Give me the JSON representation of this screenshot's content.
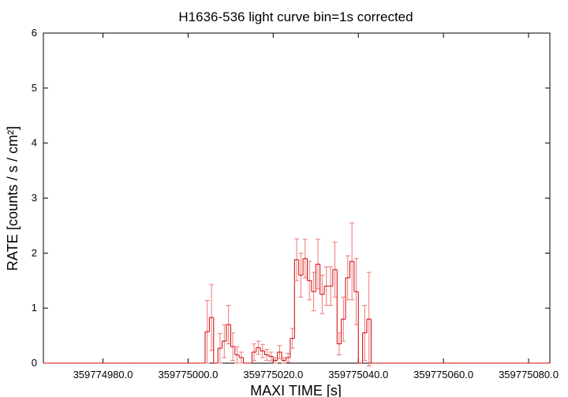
{
  "chart_data": {
    "type": "errorstep",
    "title": "H1636-536 light curve bin=1s corrected",
    "xlabel": "MAXI TIME [s]",
    "ylabel": "RATE [counts / s / cm²]",
    "xlim": [
      359774966,
      359775085
    ],
    "ylim": [
      0,
      6
    ],
    "yticks": [
      0,
      1,
      2,
      3,
      4,
      5,
      6
    ],
    "xticks": [
      {
        "value": 359774980,
        "label": "359774980.0"
      },
      {
        "value": 359775000,
        "label": "359775000.0"
      },
      {
        "value": 359775020,
        "label": "359775020.0"
      },
      {
        "value": 359775040,
        "label": "359775040.0"
      },
      {
        "value": 359775060,
        "label": "359775060.0"
      },
      {
        "value": 359775080,
        "label": "359775080.0"
      }
    ],
    "series": [
      {
        "color": "#d00000",
        "error_color": "#f07878",
        "x": [
          359774966.5,
          359774967.5,
          359774968.5,
          359774969.5,
          359774970.5,
          359774971.5,
          359774972.5,
          359774973.5,
          359774974.5,
          359774975.5,
          359774976.5,
          359774977.5,
          359774978.5,
          359774979.5,
          359774980.5,
          359774981.5,
          359774982.5,
          359774983.5,
          359774984.5,
          359774985.5,
          359774986.5,
          359774987.5,
          359774988.5,
          359774989.5,
          359774990.5,
          359774991.5,
          359774992.5,
          359774993.5,
          359774994.5,
          359774995.5,
          359774996.5,
          359774997.5,
          359774998.5,
          359774999.5,
          359775000.5,
          359775001.5,
          359775002.5,
          359775003.5,
          359775004.5,
          359775005.5,
          359775006.5,
          359775007.5,
          359775008.5,
          359775009.5,
          359775010.5,
          359775011.5,
          359775012.5,
          359775013.5,
          359775014.5,
          359775015.5,
          359775016.5,
          359775017.5,
          359775018.5,
          359775019.5,
          359775020.5,
          359775021.5,
          359775022.5,
          359775023.5,
          359775024.5,
          359775025.5,
          359775026.5,
          359775027.5,
          359775028.5,
          359775029.5,
          359775030.5,
          359775031.5,
          359775032.5,
          359775033.5,
          359775034.5,
          359775035.5,
          359775036.5,
          359775037.5,
          359775038.5,
          359775039.5,
          359775040.5,
          359775041.5,
          359775042.5,
          359775043.5,
          359775044.5,
          359775045.5,
          359775046.5,
          359775047.5,
          359775048.5,
          359775049.5,
          359775050.5,
          359775051.5,
          359775052.5,
          359775053.5,
          359775054.5,
          359775055.5,
          359775056.5,
          359775057.5,
          359775058.5,
          359775059.5,
          359775060.5,
          359775061.5,
          359775062.5,
          359775063.5,
          359775064.5,
          359775065.5,
          359775066.5,
          359775067.5,
          359775068.5,
          359775069.5,
          359775070.5,
          359775071.5,
          359775072.5,
          359775073.5,
          359775074.5,
          359775075.5,
          359775076.5,
          359775077.5,
          359775078.5,
          359775079.5,
          359775080.5,
          359775081.5,
          359775082.5,
          359775083.5,
          359775084.5
        ],
        "values": [
          0,
          0,
          0,
          0,
          0,
          0,
          0,
          0,
          0,
          0,
          0,
          0,
          0,
          0,
          0,
          0,
          0,
          0,
          0,
          0,
          0,
          0,
          0,
          0,
          0,
          0,
          0,
          0,
          0,
          0,
          0,
          0,
          0,
          0,
          0,
          0,
          0,
          0,
          0.57,
          0.83,
          0,
          0.27,
          0.4,
          0.7,
          0.3,
          0.15,
          0.1,
          0,
          0,
          0.2,
          0.28,
          0.22,
          0.15,
          0.12,
          0.05,
          0.2,
          0.05,
          0.1,
          0.45,
          1.88,
          1.6,
          1.9,
          1.5,
          1.3,
          1.8,
          1.25,
          1.4,
          1.4,
          1.7,
          0.35,
          0.8,
          1.55,
          1.85,
          1.3,
          0,
          0.55,
          0.8,
          0,
          0,
          0,
          0,
          0,
          0,
          0,
          0,
          0,
          0,
          0,
          0,
          0,
          0,
          0,
          0,
          0,
          0,
          0,
          0,
          0,
          0,
          0,
          0,
          0,
          0,
          0,
          0,
          0,
          0,
          0,
          0,
          0,
          0,
          0,
          0,
          0,
          0,
          0,
          0,
          0,
          0
        ],
        "errors": [
          0,
          0,
          0,
          0,
          0,
          0,
          0,
          0,
          0,
          0,
          0,
          0,
          0,
          0,
          0,
          0,
          0,
          0,
          0,
          0,
          0,
          0,
          0,
          0,
          0,
          0,
          0,
          0,
          0,
          0,
          0,
          0,
          0,
          0,
          0,
          0,
          0,
          0,
          0.57,
          0.6,
          0,
          0.27,
          0.3,
          0.35,
          0.25,
          0.15,
          0.1,
          0,
          0,
          0.15,
          0.12,
          0.12,
          0.1,
          0.08,
          0.05,
          0.12,
          0.05,
          0.08,
          0.18,
          0.38,
          0.4,
          0.35,
          0.35,
          0.35,
          0.45,
          0.35,
          0.35,
          0.35,
          0.5,
          0.2,
          0.4,
          0.4,
          0.7,
          0.6,
          0,
          0.5,
          0.85,
          0,
          0,
          0,
          0,
          0,
          0,
          0,
          0,
          0,
          0,
          0,
          0,
          0,
          0,
          0,
          0,
          0,
          0,
          0,
          0,
          0,
          0,
          0,
          0,
          0,
          0,
          0,
          0,
          0,
          0,
          0,
          0,
          0,
          0,
          0,
          0,
          0,
          0,
          0,
          0,
          0,
          0
        ]
      }
    ]
  }
}
